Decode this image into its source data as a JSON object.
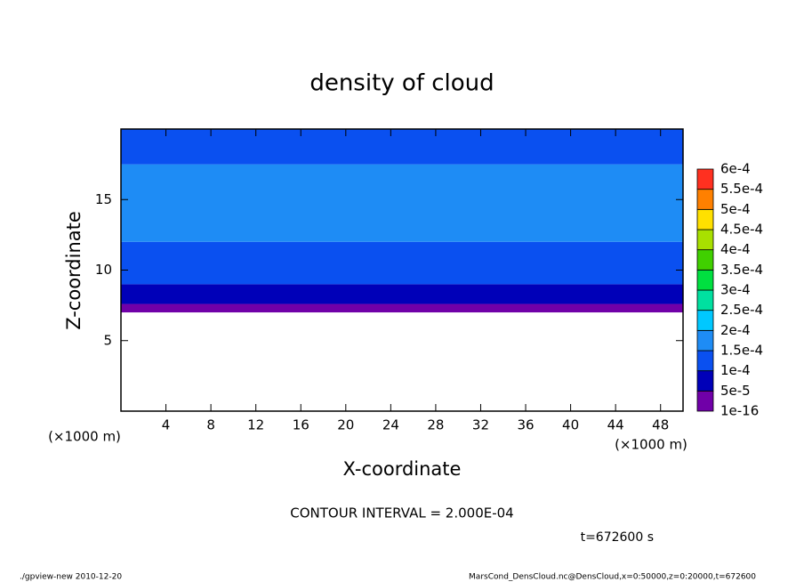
{
  "chart_data": {
    "type": "contour",
    "title": "density of cloud",
    "xlabel": "X-coordinate",
    "ylabel": "Z-coordinate",
    "xunit": "(×1000 m)",
    "yunit": "(×1000 m)",
    "xlim": [
      0,
      50
    ],
    "ylim": [
      0,
      20
    ],
    "xticks": [
      4,
      8,
      12,
      16,
      20,
      24,
      28,
      32,
      36,
      40,
      44,
      48
    ],
    "yticks": [
      5,
      10,
      15
    ],
    "levels": [
      {
        "value": 1e-16,
        "label": "1e-16"
      },
      {
        "value": 5e-05,
        "label": "5e-5"
      },
      {
        "value": 0.0001,
        "label": "1e-4"
      },
      {
        "value": 0.00015,
        "label": "1.5e-4"
      },
      {
        "value": 0.0002,
        "label": "2e-4"
      },
      {
        "value": 0.00025,
        "label": "2.5e-4"
      },
      {
        "value": 0.0003,
        "label": "3e-4"
      },
      {
        "value": 0.00035,
        "label": "3.5e-4"
      },
      {
        "value": 0.0004,
        "label": "4e-4"
      },
      {
        "value": 0.00045,
        "label": "4.5e-4"
      },
      {
        "value": 0.0005,
        "label": "5e-4"
      },
      {
        "value": 0.00055,
        "label": "5.5e-4"
      },
      {
        "value": 0.0006,
        "label": "6e-4"
      }
    ],
    "colors": [
      "#7000a8",
      "#0000b8",
      "#0a50f0",
      "#1e8cf5",
      "#00c8ff",
      "#00e0a0",
      "#00e040",
      "#40d000",
      "#a8e000",
      "#ffe000",
      "#ff8000",
      "#ff3020"
    ],
    "layers": [
      {
        "z": [
          7,
          7.6
        ],
        "level": 0
      },
      {
        "z": [
          7.6,
          9
        ],
        "level": 1
      },
      {
        "z": [
          9,
          12
        ],
        "level": 2
      },
      {
        "z": [
          12,
          17.5
        ],
        "level": 3
      },
      {
        "z": [
          17.5,
          20
        ],
        "level": 2
      }
    ],
    "contour_interval": "CONTOUR INTERVAL = 2.000E-04",
    "time_label": "t=672600 s",
    "footer_left": "./gpview-new  2010-12-20",
    "footer_right": "MarsCond_DensCloud.nc@DensCloud,x=0:50000,z=0:20000,t=672600"
  }
}
